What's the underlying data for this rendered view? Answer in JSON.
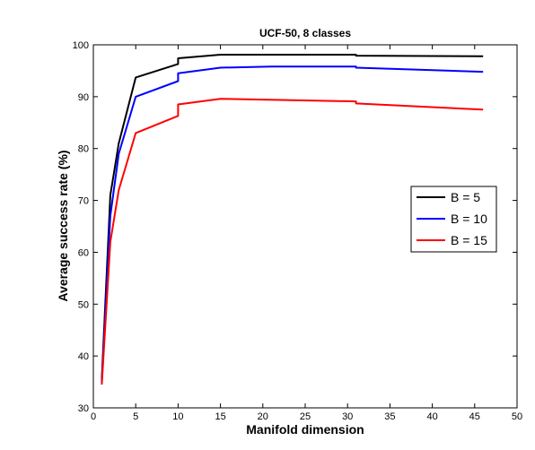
{
  "chart_data": {
    "type": "line",
    "title": "UCF-50, 8 classes",
    "xlabel": "Manifold dimension",
    "ylabel": "Average success rate (%)",
    "xlim": [
      0,
      50
    ],
    "ylim": [
      30,
      100
    ],
    "xticks": [
      0,
      5,
      10,
      15,
      20,
      25,
      30,
      35,
      40,
      45,
      50
    ],
    "yticks": [
      30,
      40,
      50,
      60,
      70,
      80,
      90,
      100
    ],
    "grid": false,
    "legend_position": "right",
    "series": [
      {
        "name": "B = 5",
        "color": "#000000",
        "x": [
          1,
          2,
          3,
          5,
          10,
          10,
          15,
          31,
          31,
          46
        ],
        "y": [
          35.5,
          71,
          81,
          93.7,
          96.3,
          97.4,
          98.1,
          98.1,
          97.9,
          97.8
        ]
      },
      {
        "name": "B = 10",
        "color": "#0000ff",
        "x": [
          1,
          2,
          3,
          5,
          10,
          10,
          15,
          21,
          31,
          31,
          46
        ],
        "y": [
          35,
          67,
          79,
          90,
          93,
          94.5,
          95.6,
          95.8,
          95.8,
          95.6,
          94.8
        ]
      },
      {
        "name": "B = 15",
        "color": "#ff0000",
        "x": [
          1,
          2,
          3,
          5,
          10,
          10,
          15,
          31,
          31,
          46
        ],
        "y": [
          34.5,
          62,
          72,
          83,
          86.3,
          88.5,
          89.6,
          89.1,
          88.7,
          87.5
        ]
      }
    ]
  }
}
